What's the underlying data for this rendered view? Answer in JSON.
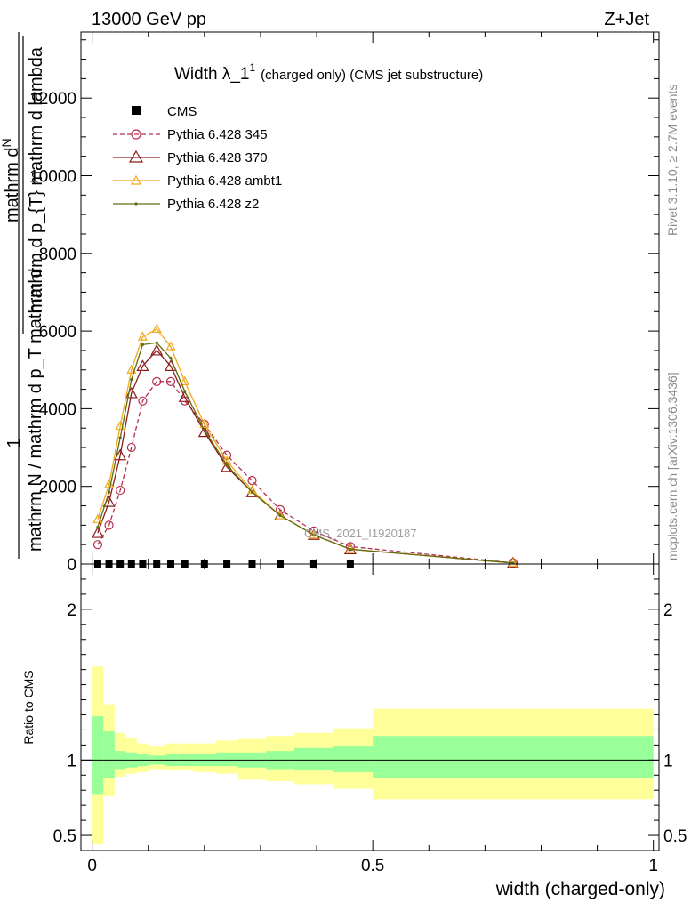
{
  "header": {
    "left": "13000 GeV pp",
    "right": "Z+Jet"
  },
  "side_labels": {
    "rivet": "Rivet 3.1.10, ≥ 2.7M events",
    "mcplots": "mcplots.cern.ch [arXiv:1306.3436]"
  },
  "chart_data": [
    {
      "type": "line",
      "title_main": "Width λ_1",
      "title_sup": "1",
      "title_rest": "(charged only) (CMS jet substructure)",
      "ylabel_num_top": "mathrm d",
      "ylabel_num_N": "N",
      "ylabel_den": "mathrm d p_{T} mathrm d lambda",
      "ylabel_den_sub": "T",
      "ylabel_left_1": "1",
      "ylabel_left_den": "mathrm N / mathrm d p_T mathrm d",
      "ylim": [
        0,
        13700
      ],
      "xlim": [
        -0.02,
        1.01
      ],
      "yticks": [
        {
          "value": 0,
          "label": "0"
        },
        {
          "value": 2000,
          "label": "2000"
        },
        {
          "value": 4000,
          "label": "4000"
        },
        {
          "value": 6000,
          "label": "6000"
        },
        {
          "value": 8000,
          "label": "8000"
        },
        {
          "value": 10000,
          "label": "10000"
        },
        {
          "value": 12000,
          "label": "12000"
        }
      ],
      "watermark": "CMS_2021_I1920187",
      "legend_position": "top-left",
      "cms_x": [
        0.01,
        0.03,
        0.05,
        0.07,
        0.09,
        0.115,
        0.14,
        0.165,
        0.2,
        0.24,
        0.285,
        0.335,
        0.395,
        0.46
      ],
      "series": [
        {
          "name": "CMS",
          "color": "#000000",
          "style": "square",
          "x": [
            0.01,
            0.03,
            0.05,
            0.07,
            0.09,
            0.115,
            0.14,
            0.165,
            0.2,
            0.24,
            0.285,
            0.335,
            0.395,
            0.46
          ],
          "values": [
            0,
            0,
            0,
            0,
            0,
            0,
            0,
            0,
            0,
            0,
            0,
            0,
            0,
            0
          ]
        },
        {
          "name": "Pythia 6.428 345",
          "color": "#b5304e",
          "style": "circle-dashed",
          "x": [
            0.01,
            0.03,
            0.05,
            0.07,
            0.09,
            0.115,
            0.14,
            0.165,
            0.2,
            0.24,
            0.285,
            0.335,
            0.395,
            0.46,
            0.75
          ],
          "values": [
            500,
            1000,
            1900,
            3000,
            4200,
            4700,
            4700,
            4200,
            3600,
            2800,
            2150,
            1400,
            850,
            450,
            30
          ]
        },
        {
          "name": "Pythia 6.428 370",
          "color": "#8c1c1c",
          "style": "triangle",
          "x": [
            0.01,
            0.03,
            0.05,
            0.07,
            0.09,
            0.115,
            0.14,
            0.165,
            0.2,
            0.24,
            0.285,
            0.335,
            0.395,
            0.46,
            0.75
          ],
          "values": [
            800,
            1600,
            2800,
            4400,
            5100,
            5500,
            5100,
            4300,
            3400,
            2500,
            1850,
            1250,
            750,
            380,
            25
          ]
        },
        {
          "name": "Pythia 6.428 ambt1",
          "color": "#f0a81c",
          "style": "triangle-small",
          "x": [
            0.01,
            0.03,
            0.05,
            0.07,
            0.09,
            0.115,
            0.14,
            0.165,
            0.2,
            0.24,
            0.285,
            0.335,
            0.395,
            0.46,
            0.75
          ],
          "values": [
            1150,
            2050,
            3550,
            5000,
            5850,
            6050,
            5600,
            4700,
            3600,
            2650,
            1900,
            1250,
            750,
            380,
            25
          ]
        },
        {
          "name": "Pythia 6.428 z2",
          "color": "#5e6e10",
          "style": "dot",
          "x": [
            0.01,
            0.03,
            0.05,
            0.07,
            0.09,
            0.115,
            0.14,
            0.165,
            0.2,
            0.24,
            0.285,
            0.335,
            0.395,
            0.46,
            0.75
          ],
          "values": [
            950,
            1850,
            3250,
            4750,
            5650,
            5700,
            5300,
            4450,
            3450,
            2550,
            1850,
            1250,
            750,
            380,
            25
          ]
        }
      ]
    },
    {
      "type": "area",
      "ylabel": "Ratio to CMS",
      "xlabel": "width (charged-only)",
      "xlim": [
        -0.02,
        1.01
      ],
      "ylim": [
        0.4,
        2.3
      ],
      "yticks": [
        {
          "value": 0.5,
          "label": "0.5"
        },
        {
          "value": 1,
          "label": "1"
        },
        {
          "value": 2,
          "label": "2"
        }
      ],
      "xticks": [
        {
          "value": 0,
          "label": "0"
        },
        {
          "value": 0.5,
          "label": "0.5"
        },
        {
          "value": 1,
          "label": "1"
        }
      ],
      "band_edges": [
        0.0,
        0.02,
        0.04,
        0.06,
        0.08,
        0.1,
        0.13,
        0.15,
        0.18,
        0.22,
        0.26,
        0.31,
        0.36,
        0.43,
        0.5,
        1.0
      ],
      "outer_band": {
        "color": "#ffff99",
        "lo": [
          0.44,
          0.76,
          0.89,
          0.91,
          0.92,
          0.94,
          0.93,
          0.93,
          0.92,
          0.91,
          0.87,
          0.86,
          0.84,
          0.81,
          0.74
        ],
        "hi": [
          1.62,
          1.37,
          1.18,
          1.15,
          1.11,
          1.09,
          1.11,
          1.11,
          1.11,
          1.13,
          1.14,
          1.16,
          1.18,
          1.21,
          1.34
        ]
      },
      "inner_band": {
        "color": "#99ff99",
        "lo": [
          0.77,
          0.88,
          0.94,
          0.95,
          0.96,
          0.97,
          0.96,
          0.96,
          0.96,
          0.96,
          0.95,
          0.94,
          0.93,
          0.92,
          0.88
        ],
        "hi": [
          1.29,
          1.19,
          1.06,
          1.05,
          1.04,
          1.03,
          1.04,
          1.04,
          1.04,
          1.05,
          1.05,
          1.06,
          1.08,
          1.09,
          1.16
        ]
      }
    }
  ]
}
